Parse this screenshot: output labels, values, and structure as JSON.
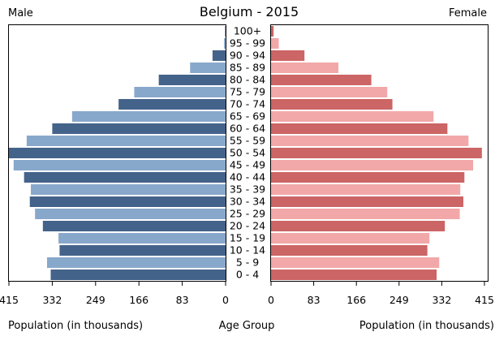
{
  "chart_data": {
    "type": "bar",
    "orientation": "horizontal",
    "layout": "population-pyramid",
    "title": "Belgium - 2015",
    "left_label": "Male",
    "right_label": "Female",
    "center_label": "Age Group",
    "xlabel_left": "Population (in thousands)",
    "xlabel_right": "Population (in thousands)",
    "xlim": [
      0,
      415
    ],
    "ticks_left": [
      "415",
      "332",
      "249",
      "166",
      "83",
      "0"
    ],
    "ticks_right": [
      "0",
      "83",
      "166",
      "249",
      "332",
      "415"
    ],
    "categories": [
      "0 - 4",
      "5 - 9",
      "10 - 14",
      "15 - 19",
      "20 - 24",
      "25 - 29",
      "30 - 34",
      "35 - 39",
      "40 - 44",
      "45 - 49",
      "50 - 54",
      "55 - 59",
      "60 - 64",
      "65 - 69",
      "70 - 74",
      "75 - 79",
      "80 - 84",
      "85 - 89",
      "90 - 94",
      "95 - 99",
      "100+"
    ],
    "series": [
      {
        "name": "Male",
        "side": "left",
        "values": [
          335,
          342,
          318,
          320,
          350,
          365,
          375,
          373,
          386,
          406,
          415,
          381,
          332,
          294,
          205,
          175,
          128,
          68,
          25,
          3,
          1
        ]
      },
      {
        "name": "Female",
        "side": "right",
        "values": [
          322,
          327,
          304,
          308,
          338,
          367,
          374,
          368,
          376,
          393,
          410,
          384,
          343,
          316,
          236,
          226,
          195,
          131,
          65,
          15,
          5
        ]
      }
    ],
    "colors": {
      "male_dark": "#44638a",
      "male_light": "#88a8cb",
      "female_dark": "#cc6565",
      "female_light": "#f2a8a8",
      "frame": "#000000"
    },
    "grid": false
  }
}
